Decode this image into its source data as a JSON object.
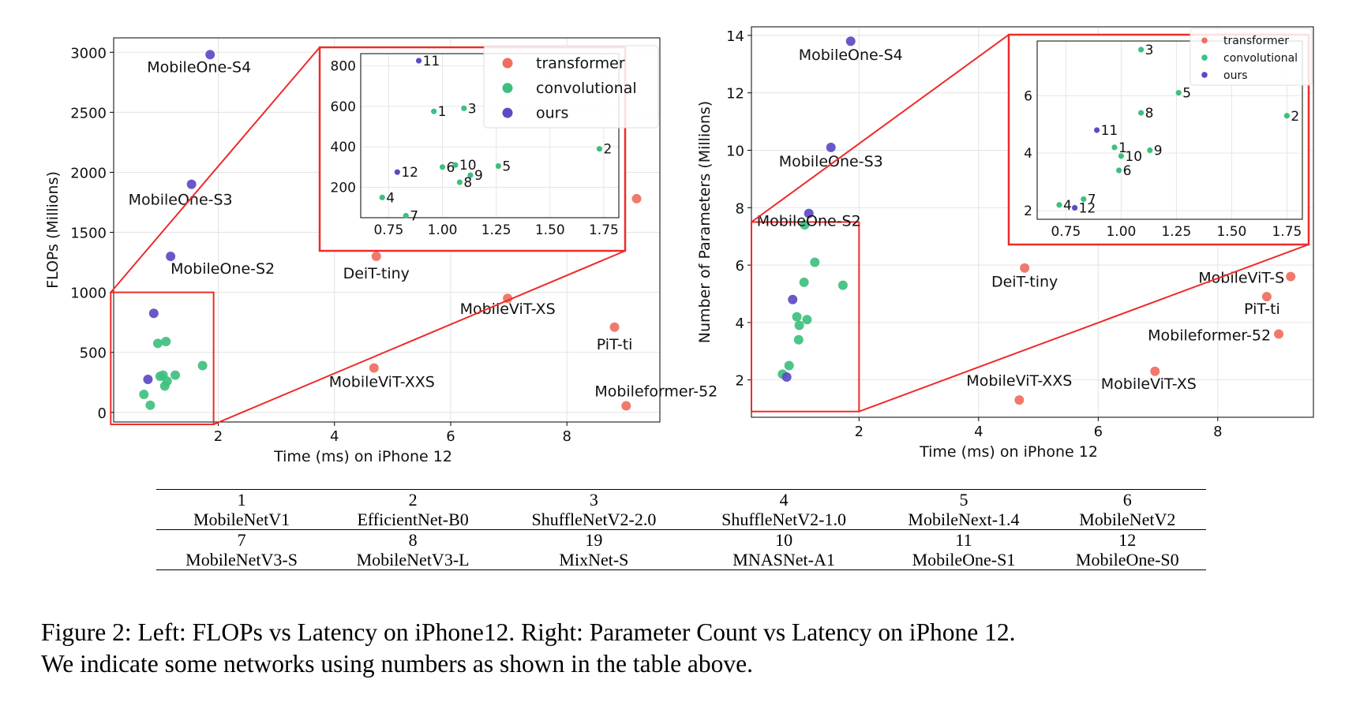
{
  "chart_data": [
    {
      "type": "scatter",
      "xlabel": "Time (ms) on iPhone 12",
      "ylabel": "FLOPs (Millions)",
      "xlim": [
        0.2,
        9.6
      ],
      "ylim": [
        -80,
        3120
      ],
      "xticks": [
        2,
        4,
        6,
        8
      ],
      "yticks": [
        0,
        500,
        1000,
        1500,
        2000,
        2500,
        3000
      ],
      "grid": true,
      "colors": {
        "transformer": "#ee6f5f",
        "convolutional": "#3fbf7f",
        "ours": "#5b4bc4"
      },
      "series": [
        {
          "name": "transformer",
          "points": [
            {
              "x": 4.72,
              "y": 1300,
              "label": "DeiT-tiny"
            },
            {
              "x": 6.98,
              "y": 950,
              "label": "MobileViT-XS"
            },
            {
              "x": 9.2,
              "y": 1780,
              "label": "MobileViT-S"
            },
            {
              "x": 4.68,
              "y": 370,
              "label": "MobileViT-XXS"
            },
            {
              "x": 8.82,
              "y": 710,
              "label": "PiT-ti"
            },
            {
              "x": 9.02,
              "y": 55,
              "label": "Mobileformer-52"
            }
          ]
        },
        {
          "name": "convolutional",
          "points": [
            {
              "x": 0.96,
              "y": 575
            },
            {
              "x": 1.1,
              "y": 590
            },
            {
              "x": 0.72,
              "y": 150
            },
            {
              "x": 0.83,
              "y": 60
            },
            {
              "x": 1.0,
              "y": 300
            },
            {
              "x": 1.05,
              "y": 310
            },
            {
              "x": 1.08,
              "y": 220
            },
            {
              "x": 1.12,
              "y": 260
            },
            {
              "x": 1.26,
              "y": 310
            },
            {
              "x": 1.73,
              "y": 390
            }
          ]
        },
        {
          "name": "ours",
          "points": [
            {
              "x": 1.86,
              "y": 2980,
              "label": "MobileOne-S4"
            },
            {
              "x": 1.54,
              "y": 1900,
              "label": "MobileOne-S3"
            },
            {
              "x": 1.18,
              "y": 1300,
              "label": "MobileOne-S2"
            },
            {
              "x": 0.89,
              "y": 825
            },
            {
              "x": 0.79,
              "y": 275
            }
          ]
        }
      ],
      "inset": {
        "xlim": [
          0.62,
          1.82
        ],
        "ylim": [
          50,
          860
        ],
        "xticks": [
          "0.75",
          "1.00",
          "1.25",
          "1.50",
          "1.75"
        ],
        "yticks": [
          "200",
          "400",
          "600",
          "800"
        ],
        "points": [
          {
            "x": 0.89,
            "y": 825,
            "label": "11",
            "series": "ours"
          },
          {
            "x": 0.79,
            "y": 275,
            "label": "12",
            "series": "ours"
          },
          {
            "x": 0.96,
            "y": 575,
            "label": "1",
            "series": "convolutional"
          },
          {
            "x": 1.1,
            "y": 590,
            "label": "3",
            "series": "convolutional"
          },
          {
            "x": 1.73,
            "y": 390,
            "label": "2",
            "series": "convolutional"
          },
          {
            "x": 1.26,
            "y": 305,
            "label": "5",
            "series": "convolutional"
          },
          {
            "x": 1.0,
            "y": 300,
            "label": "6",
            "series": "convolutional"
          },
          {
            "x": 1.06,
            "y": 310,
            "label": "10",
            "series": "convolutional"
          },
          {
            "x": 1.13,
            "y": 260,
            "label": "9",
            "series": "convolutional"
          },
          {
            "x": 1.08,
            "y": 225,
            "label": "8",
            "series": "convolutional"
          },
          {
            "x": 0.72,
            "y": 150,
            "label": "4",
            "series": "convolutional"
          },
          {
            "x": 0.83,
            "y": 60,
            "label": "7",
            "series": "convolutional"
          }
        ]
      },
      "legend": {
        "position": "inside-upper-right",
        "entries": [
          "transformer",
          "convolutional",
          "ours"
        ]
      }
    },
    {
      "type": "scatter",
      "xlabel": "Time (ms) on iPhone 12",
      "ylabel": "Number of Parameters (Millions)",
      "xlim": [
        0.2,
        9.6
      ],
      "ylim": [
        0.7,
        14.3
      ],
      "xticks": [
        2,
        4,
        6,
        8
      ],
      "yticks": [
        2,
        4,
        6,
        8,
        10,
        12,
        14
      ],
      "grid": true,
      "colors": {
        "transformer": "#ee6f5f",
        "convolutional": "#3fbf7f",
        "ours": "#5b4bc4"
      },
      "series": [
        {
          "name": "transformer",
          "points": [
            {
              "x": 4.77,
              "y": 5.9,
              "label": "DeiT-tiny"
            },
            {
              "x": 9.22,
              "y": 5.6,
              "label": "MobileViT-S"
            },
            {
              "x": 8.82,
              "y": 4.9,
              "label": "PiT-ti"
            },
            {
              "x": 9.02,
              "y": 3.6,
              "label": "Mobileformer-52"
            },
            {
              "x": 4.68,
              "y": 1.3,
              "label": "MobileViT-XXS"
            },
            {
              "x": 6.95,
              "y": 2.3,
              "label": "MobileViT-XS"
            }
          ]
        },
        {
          "name": "convolutional",
          "points": [
            {
              "x": 1.09,
              "y": 7.4
            },
            {
              "x": 1.26,
              "y": 6.1
            },
            {
              "x": 1.73,
              "y": 5.3
            },
            {
              "x": 1.08,
              "y": 5.4
            },
            {
              "x": 0.96,
              "y": 4.2
            },
            {
              "x": 1.0,
              "y": 3.9
            },
            {
              "x": 1.13,
              "y": 4.1
            },
            {
              "x": 0.99,
              "y": 3.4
            },
            {
              "x": 0.72,
              "y": 2.2
            },
            {
              "x": 0.83,
              "y": 2.5
            }
          ]
        },
        {
          "name": "ours",
          "points": [
            {
              "x": 1.86,
              "y": 13.8,
              "label": "MobileOne-S4"
            },
            {
              "x": 1.53,
              "y": 10.1,
              "label": "MobileOne-S3"
            },
            {
              "x": 1.16,
              "y": 7.8,
              "label": "MobileOne-S2"
            },
            {
              "x": 0.89,
              "y": 4.8
            },
            {
              "x": 0.79,
              "y": 2.1
            }
          ]
        }
      ],
      "inset": {
        "xlim": [
          0.62,
          1.82
        ],
        "ylim": [
          1.7,
          7.9
        ],
        "xticks": [
          "0.75",
          "1.00",
          "1.25",
          "1.50",
          "1.75"
        ],
        "yticks": [
          "2",
          "4",
          "6"
        ],
        "points": [
          {
            "x": 1.09,
            "y": 7.6,
            "label": "3",
            "series": "convolutional"
          },
          {
            "x": 1.26,
            "y": 6.1,
            "label": "5",
            "series": "convolutional"
          },
          {
            "x": 1.75,
            "y": 5.3,
            "label": "2",
            "series": "convolutional"
          },
          {
            "x": 1.09,
            "y": 5.4,
            "label": "8",
            "series": "convolutional"
          },
          {
            "x": 0.89,
            "y": 4.8,
            "label": "11",
            "series": "ours"
          },
          {
            "x": 0.97,
            "y": 4.2,
            "label": "1",
            "series": "convolutional"
          },
          {
            "x": 1.0,
            "y": 3.9,
            "label": "10",
            "series": "convolutional"
          },
          {
            "x": 1.13,
            "y": 4.1,
            "label": "9",
            "series": "convolutional"
          },
          {
            "x": 0.99,
            "y": 3.4,
            "label": "6",
            "series": "convolutional"
          },
          {
            "x": 0.72,
            "y": 2.2,
            "label": "4",
            "series": "convolutional"
          },
          {
            "x": 0.83,
            "y": 2.4,
            "label": "7",
            "series": "convolutional"
          },
          {
            "x": 0.79,
            "y": 2.1,
            "label": "12",
            "series": "ours"
          }
        ]
      },
      "legend": {
        "position": "inside-upper-right",
        "entries": [
          "transformer",
          "convolutional",
          "ours"
        ]
      }
    }
  ],
  "table": {
    "rows": [
      [
        "1",
        "2",
        "3",
        "4",
        "5",
        "6"
      ],
      [
        "MobileNetV1",
        "EfficientNet-B0",
        "ShuffleNetV2-2.0",
        "ShuffleNetV2-1.0",
        "MobileNext-1.4",
        "MobileNetV2"
      ],
      [
        "7",
        "8",
        "19",
        "10",
        "11",
        "12"
      ],
      [
        "MobileNetV3-S",
        "MobileNetV3-L",
        "MixNet-S",
        "MNASNet-A1",
        "MobileOne-S1",
        "MobileOne-S0"
      ]
    ]
  },
  "caption": {
    "line1": "Figure 2: Left: FLOPs vs Latency on iPhone12. Right: Parameter Count vs Latency on iPhone 12.",
    "line2": "We indicate some networks using numbers as shown in the table above."
  }
}
